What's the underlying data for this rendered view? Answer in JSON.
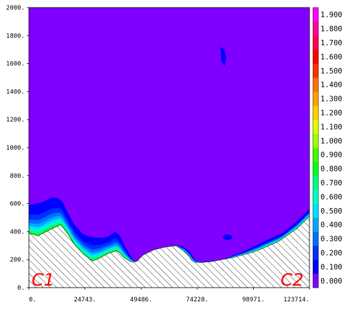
{
  "chart_data": {
    "type": "heatmap",
    "xlim": [
      0,
      123714
    ],
    "ylim": [
      0,
      2000
    ],
    "x_tick_labels": [
      "0.",
      "24743.",
      "49486.",
      "74228.",
      "98971.",
      "123714."
    ],
    "y_tick_labels": [
      "0.",
      "200.",
      "400.",
      "600.",
      "800.",
      "1000.",
      "1200.",
      "1400.",
      "1600.",
      "1800.",
      "2000."
    ],
    "colorbar": {
      "levels": [
        0.0,
        0.1,
        0.2,
        0.3,
        0.4,
        0.5,
        0.6,
        0.7,
        0.8,
        0.9,
        1.0,
        1.1,
        1.2,
        1.3,
        1.4,
        1.5,
        1.6,
        1.7,
        1.8,
        1.9
      ],
      "labels": [
        "0.000",
        "0.100",
        "0.200",
        "0.300",
        "0.400",
        "0.500",
        "0.600",
        "0.700",
        "0.800",
        "0.900",
        "1.000",
        "1.100",
        "1.200",
        "1.300",
        "1.400",
        "1.500",
        "1.600",
        "1.700",
        "1.800",
        "1.900"
      ],
      "colors": [
        "#8000ff",
        "#0000ff",
        "#0030ff",
        "#0070ff",
        "#00a8ff",
        "#00e0ff",
        "#00ffc0",
        "#00ff80",
        "#00ff20",
        "#40ff00",
        "#a0ff00",
        "#e0ff00",
        "#ffd000",
        "#ffa000",
        "#ff7000",
        "#ff3000",
        "#ff0000",
        "#ff0050",
        "#ff00a0",
        "#ff00ff"
      ]
    },
    "terrain_profile": {
      "x": [
        0,
        4000,
        10000,
        14000,
        17000,
        20000,
        24000,
        28000,
        31000,
        35000,
        39000,
        42000,
        45000,
        47500,
        50000,
        55000,
        60000,
        65000,
        70000,
        72000,
        74000,
        76000,
        80000,
        90000,
        100000,
        110000,
        118000,
        123714
      ],
      "y": [
        390,
        370,
        420,
        450,
        390,
        310,
        240,
        190,
        210,
        245,
        265,
        215,
        185,
        185,
        230,
        270,
        290,
        300,
        240,
        190,
        180,
        180,
        185,
        215,
        260,
        330,
        420,
        510
      ]
    },
    "interface_y": [
      0,
      1
    ],
    "interface_top": {
      "x": [
        0,
        3000,
        6000,
        10000,
        13000,
        15000,
        17000,
        20000,
        24000,
        28000,
        32000,
        35000,
        38000,
        40000,
        43000,
        46000,
        48000,
        51000,
        55000,
        60000,
        64000,
        68000,
        71000,
        73000,
        76000,
        85000,
        95000,
        105000,
        112000,
        118000,
        123714
      ],
      "y": [
        590,
        600,
        610,
        645,
        640,
        610,
        540,
        450,
        380,
        360,
        355,
        365,
        400,
        375,
        275,
        195,
        185,
        215,
        255,
        290,
        305,
        295,
        255,
        200,
        185,
        200,
        260,
        340,
        390,
        470,
        560
      ]
    },
    "labels": {
      "left": "C1",
      "right": "C2"
    }
  }
}
